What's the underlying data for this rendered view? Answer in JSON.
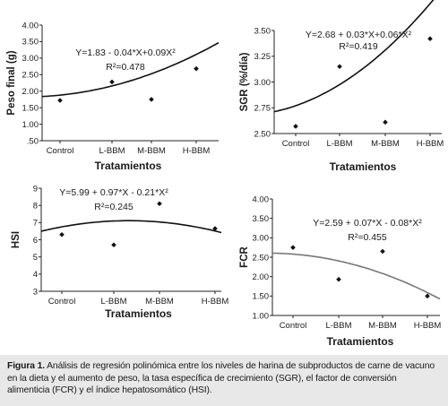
{
  "chart_data": [
    {
      "type": "scatter",
      "ylabel": "Peso final (g)",
      "xlabel": "Tratamientos",
      "categories": [
        "Control",
        "L-BBM",
        "M-BBM",
        "H-BBM"
      ],
      "ylim": [
        0.5,
        4.0
      ],
      "yticks": [
        "4.00",
        "3.50",
        "3.00",
        "2.50",
        "2.00",
        "1.50",
        "1.00",
        ".50"
      ],
      "values": [
        1.72,
        2.28,
        1.75,
        2.68
      ],
      "fit": [
        1.83,
        -0.04,
        0.09
      ],
      "equation": "Y=1.83 - 0.04*X+0.09X²",
      "r2": "R²=0.478"
    },
    {
      "type": "scatter",
      "ylabel": "SGR (%/día)",
      "xlabel": "Tratamientos",
      "categories": [
        "Control",
        "L-BBM",
        "M-BBM",
        "H-BBM"
      ],
      "ylim": [
        2.5,
        3.5
      ],
      "yticks": [
        "3.50",
        "3.25",
        "3.00",
        "2.75",
        "2.50"
      ],
      "values": [
        2.57,
        3.15,
        2.61,
        3.42
      ],
      "fit": [
        2.68,
        0.03,
        0.06
      ],
      "equation": "Y=2.68 + 0.03*X+0.06*X²",
      "r2": "R²=0.419"
    },
    {
      "type": "scatter",
      "ylabel": "HSI",
      "xlabel": "Tratamientos",
      "categories": [
        "Control",
        "L-BBM",
        "M-BBM",
        "H-BBM"
      ],
      "ylim": [
        3,
        9
      ],
      "yticks": [
        "9",
        "8",
        "7",
        "6",
        "5",
        "4",
        "3"
      ],
      "values": [
        6.3,
        5.7,
        8.1,
        6.65
      ],
      "fit": [
        5.99,
        0.97,
        -0.21
      ],
      "equation": "Y=5.99 + 0.97*X - 0.21*X²",
      "r2": "R²=0.245"
    },
    {
      "type": "scatter",
      "ylabel": "FCR",
      "xlabel": "Tratamientos",
      "categories": [
        "Control",
        "L-BBM",
        "M-BBM",
        "H-BBM"
      ],
      "ylim": [
        1.0,
        4.0
      ],
      "yticks": [
        "4.00",
        "3.50",
        "3.00",
        "2.50",
        "2.00",
        "1.50",
        "1.00"
      ],
      "values": [
        2.75,
        1.93,
        2.65,
        1.5
      ],
      "fit": [
        2.59,
        0.07,
        -0.08
      ],
      "equation": "Y=2.59 + 0.07*X - 0.08*X²",
      "r2": "R²=0.455"
    }
  ],
  "caption": {
    "label": "Figura 1.",
    "text": "Análisis de regresión polinómica entre los niveles de harina de subproductos de carne de vacuno en la dieta y el aumento de peso, la tasa específica de crecimiento (SGR), el factor de conversión alimenticia (FCR) y el índice hepatosomático (HSI)."
  }
}
